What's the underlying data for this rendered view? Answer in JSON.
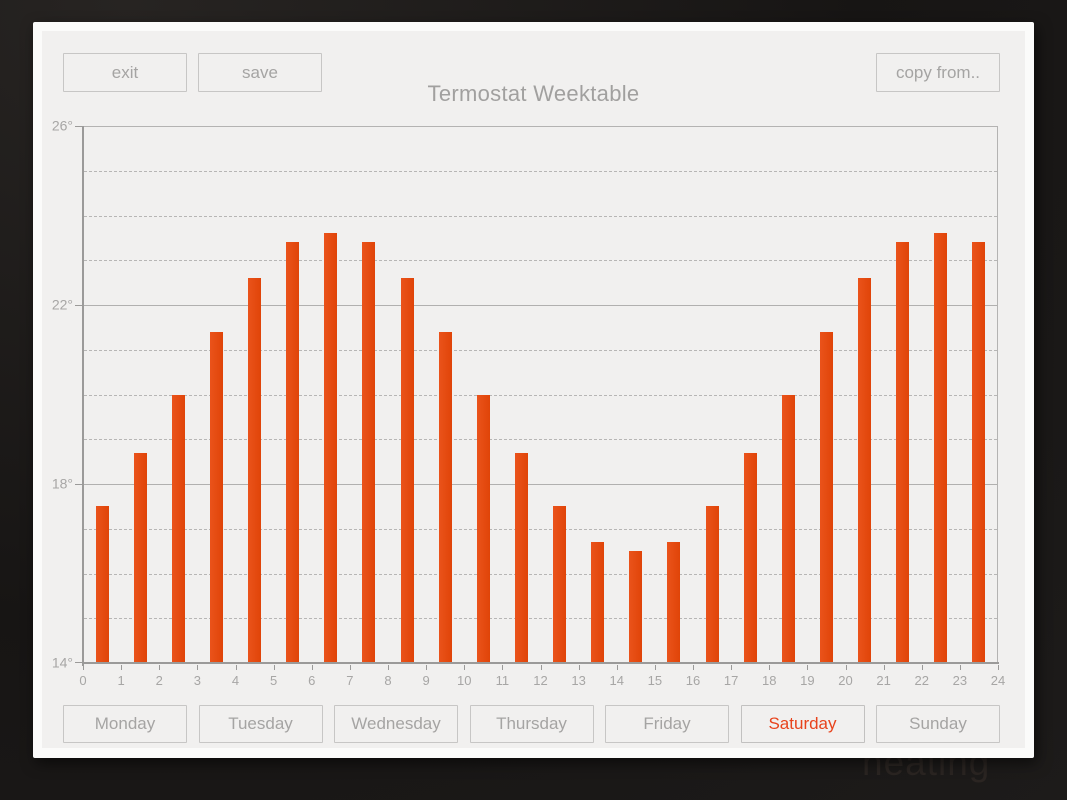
{
  "app": {
    "title": "Termostat Weektable"
  },
  "toolbar": {
    "exit_label": "exit",
    "save_label": "save",
    "copy_from_label": "copy from.."
  },
  "day_tabs": [
    {
      "label": "Monday",
      "selected": false
    },
    {
      "label": "Tuesday",
      "selected": false
    },
    {
      "label": "Wednesday",
      "selected": false
    },
    {
      "label": "Thursday",
      "selected": false
    },
    {
      "label": "Friday",
      "selected": false
    },
    {
      "label": "Saturday",
      "selected": true
    },
    {
      "label": "Sunday",
      "selected": false
    }
  ],
  "background_watermark": "heating",
  "colors": {
    "bar": "#e24a10",
    "selected_day_text": "#e8431c",
    "panel_frame": "#fbfbfa",
    "panel_bg": "#f1f0ef",
    "muted_text": "#a5a4a3",
    "title_text": "#a1a09f",
    "axis": "#9b9a99",
    "grid": "#b5b4b3"
  },
  "chart_data": {
    "type": "bar",
    "title": "Termostat Weektable",
    "selected_day": "Saturday",
    "unit": "degrees",
    "hours": [
      0,
      1,
      2,
      3,
      4,
      5,
      6,
      7,
      8,
      9,
      10,
      11,
      12,
      13,
      14,
      15,
      16,
      17,
      18,
      19,
      20,
      21,
      22,
      23
    ],
    "values": [
      17.5,
      18.7,
      20,
      21.4,
      22.6,
      23.4,
      23.6,
      23.4,
      22.6,
      21.4,
      20,
      18.7,
      17.5,
      16.7,
      16.5,
      16.7,
      17.5,
      18.7,
      20,
      21.4,
      22.6,
      23.4,
      23.6,
      23.4
    ],
    "ylim": [
      14,
      26
    ],
    "ytick_values": [
      26,
      22,
      18,
      14
    ],
    "ytick_labels": [
      "26°",
      "22°",
      "18°",
      "14°"
    ],
    "xtick_values": [
      0,
      1,
      2,
      3,
      4,
      5,
      6,
      7,
      8,
      9,
      10,
      11,
      12,
      13,
      14,
      15,
      16,
      17,
      18,
      19,
      20,
      21,
      22,
      23,
      24
    ],
    "grid": {
      "minor": "dashed every 1 degree",
      "major": "solid every 4 degrees",
      "on": true
    },
    "legend": "none",
    "bar_color": "#e24a10"
  }
}
